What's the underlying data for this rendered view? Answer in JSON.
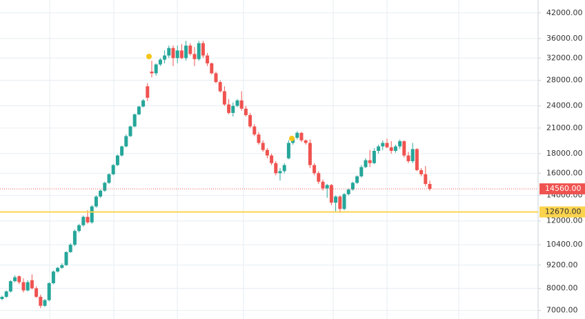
{
  "chart_data": {
    "type": "candlestick",
    "log_scale": true,
    "grid": true,
    "up_color": "#26a69a",
    "down_color": "#ef5350",
    "ylim": [
      6650,
      45400
    ],
    "yticks": [
      {
        "value": 42000,
        "label": "42000.00"
      },
      {
        "value": 36000,
        "label": "36000.00"
      },
      {
        "value": 32000,
        "label": "32000.00"
      },
      {
        "value": 28000,
        "label": "28000.00"
      },
      {
        "value": 24000,
        "label": "24000.00"
      },
      {
        "value": 21000,
        "label": "21000.00"
      },
      {
        "value": 18000,
        "label": "18000.00"
      },
      {
        "value": 16000,
        "label": "16000.00"
      },
      {
        "value": 14000,
        "label": "14000.00"
      },
      {
        "value": 12000,
        "label": "12000.00"
      },
      {
        "value": 10400,
        "label": "10400.00"
      },
      {
        "value": 9200,
        "label": "9200.00"
      },
      {
        "value": 8000,
        "label": "8000.00"
      },
      {
        "value": 7000,
        "label": "7000.00"
      }
    ],
    "lines": [
      {
        "value": 12670,
        "label": "12670.00",
        "color": "#fbd34d",
        "style": "solid"
      },
      {
        "value": 14560,
        "label": "14560.00",
        "color": "#ef5350",
        "style": "dotted"
      }
    ],
    "candles": [
      [
        7500,
        7650,
        7450,
        7600
      ],
      [
        7600,
        7900,
        7550,
        7850
      ],
      [
        7850,
        8400,
        7800,
        8350
      ],
      [
        8350,
        8650,
        8300,
        8550
      ],
      [
        8600,
        8650,
        8200,
        8300
      ],
      [
        8300,
        8500,
        7800,
        7900
      ],
      [
        7900,
        8400,
        7850,
        8300
      ],
      [
        8400,
        8700,
        7950,
        8000
      ],
      [
        8000,
        8100,
        7550,
        7600
      ],
      [
        7600,
        7700,
        7100,
        7200
      ],
      [
        7200,
        7500,
        7150,
        7450
      ],
      [
        7450,
        8300,
        7400,
        8250
      ],
      [
        8250,
        8900,
        8200,
        8850
      ],
      [
        8850,
        9100,
        8800,
        9050
      ],
      [
        9050,
        9300,
        9000,
        9200
      ],
      [
        9200,
        10000,
        9150,
        9950
      ],
      [
        9950,
        10500,
        9900,
        10400
      ],
      [
        10400,
        11400,
        10300,
        11300
      ],
      [
        11300,
        11800,
        11200,
        11700
      ],
      [
        11700,
        12400,
        11600,
        12300
      ],
      [
        12300,
        12800,
        11800,
        11900
      ],
      [
        11900,
        13200,
        11800,
        13100
      ],
      [
        13100,
        14000,
        13000,
        13900
      ],
      [
        13900,
        14500,
        13800,
        14400
      ],
      [
        14400,
        15200,
        14300,
        15100
      ],
      [
        15100,
        16000,
        15000,
        15900
      ],
      [
        15900,
        16900,
        15800,
        16800
      ],
      [
        16800,
        17900,
        16700,
        17800
      ],
      [
        17800,
        18900,
        17700,
        18800
      ],
      [
        18800,
        20200,
        18700,
        20000
      ],
      [
        20000,
        21300,
        19900,
        21200
      ],
      [
        21200,
        22900,
        21100,
        22800
      ],
      [
        22800,
        24000,
        22700,
        23900
      ],
      [
        23900,
        25000,
        23800,
        24800
      ],
      [
        27000,
        27500,
        24700,
        25200
      ],
      [
        29500,
        31500,
        28500,
        29200
      ],
      [
        29200,
        31000,
        28800,
        30800
      ],
      [
        30800,
        32000,
        30500,
        31700
      ],
      [
        31700,
        33500,
        31000,
        32500
      ],
      [
        32500,
        34500,
        32000,
        34000
      ],
      [
        34000,
        34500,
        30500,
        32000
      ],
      [
        32000,
        34500,
        31000,
        33500
      ],
      [
        33500,
        34800,
        31800,
        32000
      ],
      [
        32000,
        35500,
        31500,
        34500
      ],
      [
        34500,
        35000,
        32500,
        32800
      ],
      [
        32800,
        34200,
        30500,
        31800
      ],
      [
        31800,
        35500,
        31500,
        35000
      ],
      [
        35000,
        35500,
        32000,
        32500
      ],
      [
        32500,
        33000,
        30500,
        31000
      ],
      [
        31000,
        31200,
        29000,
        29200
      ],
      [
        29200,
        29500,
        27500,
        27700
      ],
      [
        27700,
        28000,
        26000,
        26200
      ],
      [
        26200,
        27000,
        24000,
        24200
      ],
      [
        24200,
        25000,
        22800,
        23000
      ],
      [
        23000,
        24500,
        22500,
        24000
      ],
      [
        24000,
        25000,
        23800,
        24800
      ],
      [
        24800,
        26200,
        23300,
        23600
      ],
      [
        23600,
        24000,
        22500,
        22700
      ],
      [
        22700,
        23000,
        21000,
        21200
      ],
      [
        21200,
        21500,
        20000,
        20200
      ],
      [
        20200,
        20500,
        19000,
        19200
      ],
      [
        19200,
        19500,
        18200,
        18400
      ],
      [
        18400,
        18600,
        17500,
        17800
      ],
      [
        17800,
        18000,
        16800,
        17000
      ],
      [
        17000,
        17200,
        15800,
        16000
      ],
      [
        16000,
        16500,
        15300,
        16200
      ],
      [
        16200,
        17000,
        16000,
        16800
      ],
      [
        17500,
        19500,
        17400,
        19200
      ],
      [
        19200,
        20000,
        19000,
        19800
      ],
      [
        19800,
        20600,
        19600,
        20400
      ],
      [
        20400,
        20500,
        19300,
        19500
      ],
      [
        19500,
        19600,
        19000,
        19200
      ],
      [
        19200,
        19600,
        16500,
        16800
      ],
      [
        16800,
        17000,
        15800,
        16000
      ],
      [
        16000,
        16200,
        15000,
        15200
      ],
      [
        15200,
        15400,
        14400,
        14600
      ],
      [
        14600,
        15000,
        13800,
        14900
      ],
      [
        14900,
        15000,
        13200,
        13400
      ],
      [
        13400,
        14000,
        12700,
        13900
      ],
      [
        13900,
        14000,
        12600,
        12900
      ],
      [
        12900,
        14200,
        12800,
        14100
      ],
      [
        14100,
        14600,
        14000,
        14500
      ],
      [
        14500,
        15200,
        14400,
        15100
      ],
      [
        15100,
        15800,
        15000,
        15700
      ],
      [
        15700,
        16800,
        15600,
        16600
      ],
      [
        16600,
        17500,
        16500,
        17300
      ],
      [
        17300,
        18400,
        16600,
        17000
      ],
      [
        17000,
        18600,
        16900,
        18300
      ],
      [
        18300,
        19000,
        18000,
        18800
      ],
      [
        18800,
        19500,
        18400,
        19200
      ],
      [
        19200,
        19700,
        18600,
        18700
      ],
      [
        18700,
        19400,
        18000,
        18300
      ],
      [
        18300,
        19000,
        18100,
        18800
      ],
      [
        18800,
        19600,
        18500,
        19400
      ],
      [
        19400,
        19500,
        17600,
        17800
      ],
      [
        17800,
        18200,
        17000,
        17200
      ],
      [
        17200,
        19200,
        17000,
        18500
      ],
      [
        18500,
        18600,
        16200,
        16300
      ],
      [
        16300,
        16500,
        15700,
        15900
      ],
      [
        15900,
        16700,
        14800,
        15000
      ],
      [
        15000,
        15300,
        14400,
        14560
      ]
    ]
  }
}
